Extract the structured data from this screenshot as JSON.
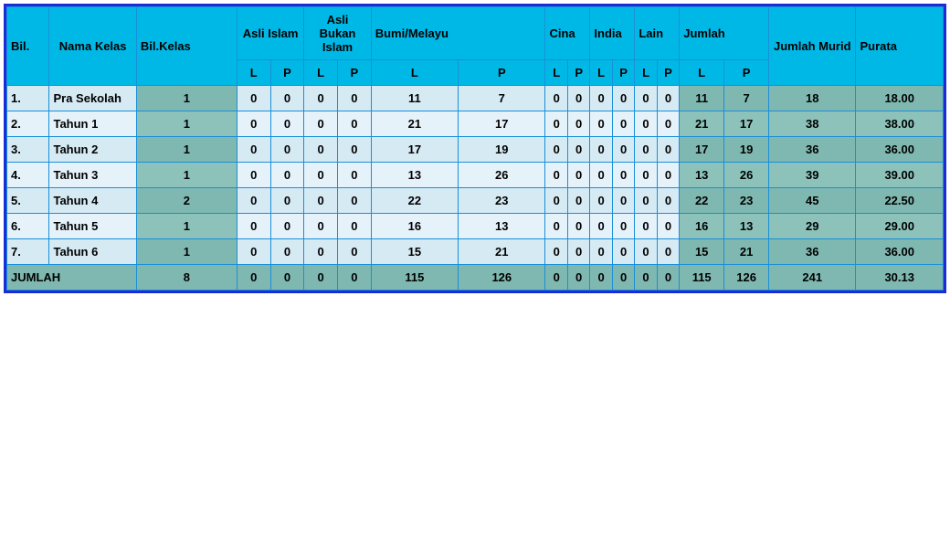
{
  "colors": {
    "outer_border": "#1a2bd8",
    "cell_border": "#1a8fd8",
    "header_bg": "#00b8e6",
    "row_bg_a": "#d6eaf4",
    "row_bg_b": "#e6f2fa",
    "green_bg_a": "#7fb8b0",
    "green_bg_b": "#8cc2ba",
    "text": "#000000"
  },
  "headers": {
    "bil": "Bil.",
    "nama_kelas": "Nama Kelas",
    "bil_kelas": "Bil.Kelas",
    "asli_islam": "Asli Islam",
    "asli_bukan_islam": "Asli Bukan Islam",
    "bumi_melayu": "Bumi/Melayu",
    "cina": "Cina",
    "india": "India",
    "lain": "Lain",
    "jumlah": "Jumlah",
    "jumlah_murid": "Jumlah Murid",
    "purata": "Purata",
    "L": "L",
    "P": "P"
  },
  "rows": [
    {
      "no": "1.",
      "nama": "Pra Sekolah",
      "kelas": "1",
      "ai_l": "0",
      "ai_p": "0",
      "abi_l": "0",
      "abi_p": "0",
      "bm_l": "11",
      "bm_p": "7",
      "c_l": "0",
      "c_p": "0",
      "i_l": "0",
      "i_p": "0",
      "ln_l": "0",
      "ln_p": "0",
      "j_l": "11",
      "j_p": "7",
      "jm": "18",
      "pr": "18.00"
    },
    {
      "no": "2.",
      "nama": "Tahun 1",
      "kelas": "1",
      "ai_l": "0",
      "ai_p": "0",
      "abi_l": "0",
      "abi_p": "0",
      "bm_l": "21",
      "bm_p": "17",
      "c_l": "0",
      "c_p": "0",
      "i_l": "0",
      "i_p": "0",
      "ln_l": "0",
      "ln_p": "0",
      "j_l": "21",
      "j_p": "17",
      "jm": "38",
      "pr": "38.00"
    },
    {
      "no": "3.",
      "nama": "Tahun 2",
      "kelas": "1",
      "ai_l": "0",
      "ai_p": "0",
      "abi_l": "0",
      "abi_p": "0",
      "bm_l": "17",
      "bm_p": "19",
      "c_l": "0",
      "c_p": "0",
      "i_l": "0",
      "i_p": "0",
      "ln_l": "0",
      "ln_p": "0",
      "j_l": "17",
      "j_p": "19",
      "jm": "36",
      "pr": "36.00"
    },
    {
      "no": "4.",
      "nama": "Tahun 3",
      "kelas": "1",
      "ai_l": "0",
      "ai_p": "0",
      "abi_l": "0",
      "abi_p": "0",
      "bm_l": "13",
      "bm_p": "26",
      "c_l": "0",
      "c_p": "0",
      "i_l": "0",
      "i_p": "0",
      "ln_l": "0",
      "ln_p": "0",
      "j_l": "13",
      "j_p": "26",
      "jm": "39",
      "pr": "39.00"
    },
    {
      "no": "5.",
      "nama": "Tahun 4",
      "kelas": "2",
      "ai_l": "0",
      "ai_p": "0",
      "abi_l": "0",
      "abi_p": "0",
      "bm_l": "22",
      "bm_p": "23",
      "c_l": "0",
      "c_p": "0",
      "i_l": "0",
      "i_p": "0",
      "ln_l": "0",
      "ln_p": "0",
      "j_l": "22",
      "j_p": "23",
      "jm": "45",
      "pr": "22.50"
    },
    {
      "no": "6.",
      "nama": "Tahun 5",
      "kelas": "1",
      "ai_l": "0",
      "ai_p": "0",
      "abi_l": "0",
      "abi_p": "0",
      "bm_l": "16",
      "bm_p": "13",
      "c_l": "0",
      "c_p": "0",
      "i_l": "0",
      "i_p": "0",
      "ln_l": "0",
      "ln_p": "0",
      "j_l": "16",
      "j_p": "13",
      "jm": "29",
      "pr": "29.00"
    },
    {
      "no": "7.",
      "nama": "Tahun 6",
      "kelas": "1",
      "ai_l": "0",
      "ai_p": "0",
      "abi_l": "0",
      "abi_p": "0",
      "bm_l": "15",
      "bm_p": "21",
      "c_l": "0",
      "c_p": "0",
      "i_l": "0",
      "i_p": "0",
      "ln_l": "0",
      "ln_p": "0",
      "j_l": "15",
      "j_p": "21",
      "jm": "36",
      "pr": "36.00"
    }
  ],
  "total": {
    "label": "JUMLAH",
    "kelas": "8",
    "ai_l": "0",
    "ai_p": "0",
    "abi_l": "0",
    "abi_p": "0",
    "bm_l": "115",
    "bm_p": "126",
    "c_l": "0",
    "c_p": "0",
    "i_l": "0",
    "i_p": "0",
    "ln_l": "0",
    "ln_p": "0",
    "j_l": "115",
    "j_p": "126",
    "jm": "241",
    "pr": "30.13"
  }
}
